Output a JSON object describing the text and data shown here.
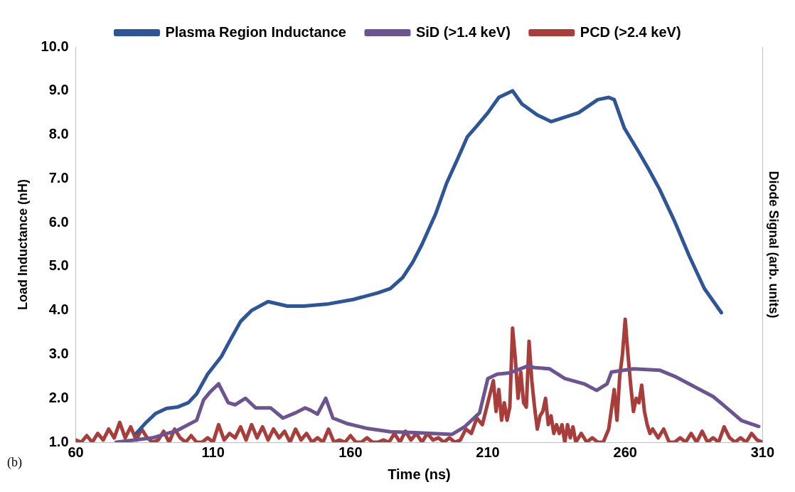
{
  "chart_data": {
    "type": "line",
    "xlabel": "Time (ns)",
    "ylabel": "Load Inductance (nH)",
    "y2label": "Diode Signal (arb. units)",
    "annotations": [
      "(b)"
    ],
    "legend": "top",
    "grid": false,
    "line_style": "solid",
    "xlim": [
      60,
      310
    ],
    "xticks": [
      60,
      110,
      160,
      210,
      260,
      310
    ],
    "ylim": [
      1,
      10
    ],
    "yticks": [
      {
        "value": 1,
        "label": "1.0"
      },
      {
        "value": 2,
        "label": "2.0"
      },
      {
        "value": 3,
        "label": "3.0"
      },
      {
        "value": 4,
        "label": "4.0"
      },
      {
        "value": 5,
        "label": "5.0"
      },
      {
        "value": 6,
        "label": "6.0"
      },
      {
        "value": 7,
        "label": "7.0"
      },
      {
        "value": 8,
        "label": "8.0"
      },
      {
        "value": 9,
        "label": "9.0"
      },
      {
        "value": 10,
        "label": "10.0"
      }
    ],
    "series": [
      {
        "name": "Plasma Region Inductance",
        "color": "#2e5597",
        "x": [
          82,
          85.6,
          89,
          93,
          97,
          101,
          104,
          108,
          113,
          116,
          120,
          124,
          130,
          137,
          143,
          152,
          161,
          170,
          174.5,
          179,
          182.7,
          186,
          191,
          195,
          199,
          202.5,
          206,
          210,
          214,
          219,
          222.4,
          228,
          233,
          238,
          243,
          250,
          254,
          256,
          259.7,
          265,
          268.7,
          272.5,
          277.9,
          283.3,
          288.8,
          295
        ],
        "values": [
          1.2,
          1.45,
          1.65,
          1.77,
          1.8,
          1.9,
          2.1,
          2.55,
          2.95,
          3.3,
          3.75,
          4.0,
          4.2,
          4.1,
          4.1,
          4.15,
          4.25,
          4.4,
          4.5,
          4.75,
          5.1,
          5.5,
          6.2,
          6.9,
          7.45,
          7.95,
          8.2,
          8.5,
          8.85,
          9.0,
          8.7,
          8.45,
          8.3,
          8.4,
          8.5,
          8.8,
          8.85,
          8.8,
          8.15,
          7.6,
          7.2,
          6.76,
          6.04,
          5.24,
          4.5,
          3.95
        ]
      },
      {
        "name": "SiD (>1.4 keV)",
        "color": "#6b5490",
        "x": [
          74.7,
          88,
          97,
          104,
          106.5,
          109,
          112,
          115.5,
          118,
          121.8,
          125.5,
          131,
          135.4,
          140,
          143.5,
          145.4,
          148,
          151,
          153.6,
          159,
          166.4,
          174.5,
          183.5,
          197,
          201.7,
          207,
          210,
          213.4,
          218,
          224.3,
          227,
          232.5,
          238,
          245,
          249.6,
          253.4,
          255,
          263,
          272.5,
          278,
          285,
          292,
          297,
          302.4,
          308.6
        ],
        "values": [
          1.0,
          1.1,
          1.27,
          1.5,
          1.96,
          2.15,
          2.33,
          1.9,
          1.85,
          2.0,
          1.78,
          1.78,
          1.55,
          1.67,
          1.78,
          1.73,
          1.64,
          2.0,
          1.55,
          1.42,
          1.31,
          1.24,
          1.22,
          1.18,
          1.36,
          1.67,
          2.45,
          2.55,
          2.58,
          2.73,
          2.7,
          2.67,
          2.45,
          2.33,
          2.18,
          2.33,
          2.6,
          2.67,
          2.64,
          2.5,
          2.27,
          2.04,
          1.78,
          1.49,
          1.36
        ]
      },
      {
        "name": "PCD (>2.4 keV)",
        "color": "#a83e3b",
        "x": [
          60,
          62,
          64,
          66,
          68,
          70,
          72,
          74,
          76,
          78,
          80,
          82,
          84,
          86,
          88,
          90,
          92,
          94,
          96,
          98,
          100,
          102,
          104,
          106,
          108,
          110,
          112,
          114,
          116,
          118,
          120,
          122,
          124,
          126,
          128,
          130,
          132,
          134,
          136,
          138,
          140,
          142,
          144,
          146,
          148,
          150,
          152,
          154,
          156,
          158,
          160,
          162,
          164,
          166,
          168,
          170,
          172,
          174,
          176,
          178,
          180,
          182,
          184,
          186,
          188,
          190,
          192,
          194,
          196,
          198,
          200,
          202,
          204,
          206,
          208,
          210,
          212,
          213,
          214,
          215,
          216,
          217,
          218,
          219,
          220,
          221,
          222,
          223,
          224,
          225,
          226,
          227,
          228,
          229,
          230,
          231,
          232,
          233,
          234,
          235,
          236,
          237,
          238,
          239,
          240,
          241,
          242,
          244,
          246,
          248,
          250,
          252,
          254,
          256,
          257,
          258,
          259,
          260,
          261,
          262,
          263,
          264,
          265,
          266,
          267,
          268,
          269,
          270,
          272,
          274,
          276,
          278,
          280,
          282,
          284,
          286,
          288,
          290,
          292,
          294,
          296,
          298,
          300,
          302,
          304,
          306,
          308,
          310
        ],
        "values": [
          1.05,
          1.0,
          1.15,
          1.0,
          1.2,
          1.05,
          1.3,
          1.1,
          1.45,
          1.1,
          1.35,
          1.05,
          1.3,
          1.1,
          1.0,
          1.05,
          1.25,
          1.0,
          1.3,
          1.1,
          1.0,
          1.15,
          1.0,
          1.0,
          1.1,
          1.0,
          1.4,
          1.05,
          1.2,
          1.1,
          1.35,
          1.05,
          1.4,
          1.1,
          1.35,
          1.05,
          1.3,
          1.1,
          1.25,
          1.0,
          1.3,
          1.05,
          1.2,
          1.0,
          1.1,
          1.0,
          1.3,
          1.0,
          1.05,
          1.0,
          1.15,
          1.0,
          1.0,
          1.1,
          1.0,
          1.0,
          1.05,
          1.0,
          1.2,
          1.0,
          1.25,
          1.05,
          1.2,
          1.0,
          1.2,
          1.05,
          1.1,
          1.0,
          1.1,
          1.0,
          1.05,
          1.3,
          1.2,
          1.55,
          1.4,
          1.9,
          2.4,
          1.7,
          2.2,
          1.5,
          1.9,
          1.5,
          1.8,
          3.6,
          2.9,
          2.0,
          2.6,
          1.9,
          1.8,
          3.3,
          2.4,
          1.8,
          1.3,
          1.6,
          1.7,
          2.0,
          1.4,
          1.6,
          1.2,
          1.4,
          1.2,
          1.4,
          1.0,
          1.4,
          1.1,
          1.35,
          1.0,
          1.2,
          1.0,
          1.1,
          1.0,
          1.0,
          1.3,
          2.2,
          1.5,
          2.5,
          3.0,
          3.8,
          3.0,
          2.3,
          1.7,
          2.0,
          1.9,
          2.3,
          1.7,
          1.4,
          1.2,
          1.3,
          1.1,
          1.3,
          1.0,
          1.0,
          1.1,
          1.0,
          1.2,
          1.0,
          1.25,
          1.0,
          1.1,
          1.0,
          1.35,
          1.1,
          1.0,
          1.1,
          1.0,
          1.2,
          1.05,
          1.0
        ]
      }
    ]
  }
}
